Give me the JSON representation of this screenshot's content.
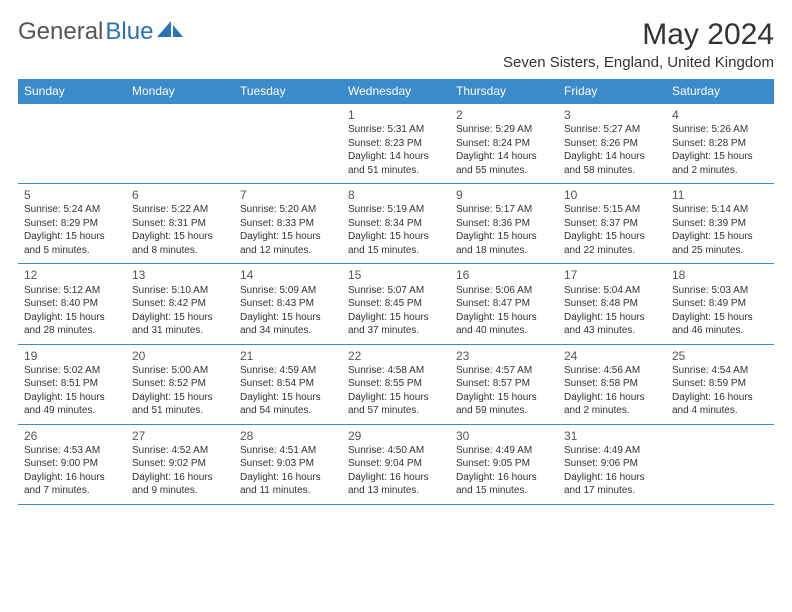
{
  "brand": {
    "part1": "General",
    "part2": "Blue"
  },
  "title": "May 2024",
  "location": "Seven Sisters, England, United Kingdom",
  "colors": {
    "header_bg": "#3b8bca",
    "header_text": "#ffffff",
    "rule": "#3b8bca",
    "text": "#333333",
    "brand_gray": "#555555",
    "brand_blue": "#2a72b5",
    "background": "#ffffff"
  },
  "day_headers": [
    "Sunday",
    "Monday",
    "Tuesday",
    "Wednesday",
    "Thursday",
    "Friday",
    "Saturday"
  ],
  "weeks": [
    [
      {
        "n": "",
        "lines": []
      },
      {
        "n": "",
        "lines": []
      },
      {
        "n": "",
        "lines": []
      },
      {
        "n": "1",
        "lines": [
          "Sunrise: 5:31 AM",
          "Sunset: 8:23 PM",
          "Daylight: 14 hours",
          "and 51 minutes."
        ]
      },
      {
        "n": "2",
        "lines": [
          "Sunrise: 5:29 AM",
          "Sunset: 8:24 PM",
          "Daylight: 14 hours",
          "and 55 minutes."
        ]
      },
      {
        "n": "3",
        "lines": [
          "Sunrise: 5:27 AM",
          "Sunset: 8:26 PM",
          "Daylight: 14 hours",
          "and 58 minutes."
        ]
      },
      {
        "n": "4",
        "lines": [
          "Sunrise: 5:26 AM",
          "Sunset: 8:28 PM",
          "Daylight: 15 hours",
          "and 2 minutes."
        ]
      }
    ],
    [
      {
        "n": "5",
        "lines": [
          "Sunrise: 5:24 AM",
          "Sunset: 8:29 PM",
          "Daylight: 15 hours",
          "and 5 minutes."
        ]
      },
      {
        "n": "6",
        "lines": [
          "Sunrise: 5:22 AM",
          "Sunset: 8:31 PM",
          "Daylight: 15 hours",
          "and 8 minutes."
        ]
      },
      {
        "n": "7",
        "lines": [
          "Sunrise: 5:20 AM",
          "Sunset: 8:33 PM",
          "Daylight: 15 hours",
          "and 12 minutes."
        ]
      },
      {
        "n": "8",
        "lines": [
          "Sunrise: 5:19 AM",
          "Sunset: 8:34 PM",
          "Daylight: 15 hours",
          "and 15 minutes."
        ]
      },
      {
        "n": "9",
        "lines": [
          "Sunrise: 5:17 AM",
          "Sunset: 8:36 PM",
          "Daylight: 15 hours",
          "and 18 minutes."
        ]
      },
      {
        "n": "10",
        "lines": [
          "Sunrise: 5:15 AM",
          "Sunset: 8:37 PM",
          "Daylight: 15 hours",
          "and 22 minutes."
        ]
      },
      {
        "n": "11",
        "lines": [
          "Sunrise: 5:14 AM",
          "Sunset: 8:39 PM",
          "Daylight: 15 hours",
          "and 25 minutes."
        ]
      }
    ],
    [
      {
        "n": "12",
        "lines": [
          "Sunrise: 5:12 AM",
          "Sunset: 8:40 PM",
          "Daylight: 15 hours",
          "and 28 minutes."
        ]
      },
      {
        "n": "13",
        "lines": [
          "Sunrise: 5:10 AM",
          "Sunset: 8:42 PM",
          "Daylight: 15 hours",
          "and 31 minutes."
        ]
      },
      {
        "n": "14",
        "lines": [
          "Sunrise: 5:09 AM",
          "Sunset: 8:43 PM",
          "Daylight: 15 hours",
          "and 34 minutes."
        ]
      },
      {
        "n": "15",
        "lines": [
          "Sunrise: 5:07 AM",
          "Sunset: 8:45 PM",
          "Daylight: 15 hours",
          "and 37 minutes."
        ]
      },
      {
        "n": "16",
        "lines": [
          "Sunrise: 5:06 AM",
          "Sunset: 8:47 PM",
          "Daylight: 15 hours",
          "and 40 minutes."
        ]
      },
      {
        "n": "17",
        "lines": [
          "Sunrise: 5:04 AM",
          "Sunset: 8:48 PM",
          "Daylight: 15 hours",
          "and 43 minutes."
        ]
      },
      {
        "n": "18",
        "lines": [
          "Sunrise: 5:03 AM",
          "Sunset: 8:49 PM",
          "Daylight: 15 hours",
          "and 46 minutes."
        ]
      }
    ],
    [
      {
        "n": "19",
        "lines": [
          "Sunrise: 5:02 AM",
          "Sunset: 8:51 PM",
          "Daylight: 15 hours",
          "and 49 minutes."
        ]
      },
      {
        "n": "20",
        "lines": [
          "Sunrise: 5:00 AM",
          "Sunset: 8:52 PM",
          "Daylight: 15 hours",
          "and 51 minutes."
        ]
      },
      {
        "n": "21",
        "lines": [
          "Sunrise: 4:59 AM",
          "Sunset: 8:54 PM",
          "Daylight: 15 hours",
          "and 54 minutes."
        ]
      },
      {
        "n": "22",
        "lines": [
          "Sunrise: 4:58 AM",
          "Sunset: 8:55 PM",
          "Daylight: 15 hours",
          "and 57 minutes."
        ]
      },
      {
        "n": "23",
        "lines": [
          "Sunrise: 4:57 AM",
          "Sunset: 8:57 PM",
          "Daylight: 15 hours",
          "and 59 minutes."
        ]
      },
      {
        "n": "24",
        "lines": [
          "Sunrise: 4:56 AM",
          "Sunset: 8:58 PM",
          "Daylight: 16 hours",
          "and 2 minutes."
        ]
      },
      {
        "n": "25",
        "lines": [
          "Sunrise: 4:54 AM",
          "Sunset: 8:59 PM",
          "Daylight: 16 hours",
          "and 4 minutes."
        ]
      }
    ],
    [
      {
        "n": "26",
        "lines": [
          "Sunrise: 4:53 AM",
          "Sunset: 9:00 PM",
          "Daylight: 16 hours",
          "and 7 minutes."
        ]
      },
      {
        "n": "27",
        "lines": [
          "Sunrise: 4:52 AM",
          "Sunset: 9:02 PM",
          "Daylight: 16 hours",
          "and 9 minutes."
        ]
      },
      {
        "n": "28",
        "lines": [
          "Sunrise: 4:51 AM",
          "Sunset: 9:03 PM",
          "Daylight: 16 hours",
          "and 11 minutes."
        ]
      },
      {
        "n": "29",
        "lines": [
          "Sunrise: 4:50 AM",
          "Sunset: 9:04 PM",
          "Daylight: 16 hours",
          "and 13 minutes."
        ]
      },
      {
        "n": "30",
        "lines": [
          "Sunrise: 4:49 AM",
          "Sunset: 9:05 PM",
          "Daylight: 16 hours",
          "and 15 minutes."
        ]
      },
      {
        "n": "31",
        "lines": [
          "Sunrise: 4:49 AM",
          "Sunset: 9:06 PM",
          "Daylight: 16 hours",
          "and 17 minutes."
        ]
      },
      {
        "n": "",
        "lines": []
      }
    ]
  ]
}
